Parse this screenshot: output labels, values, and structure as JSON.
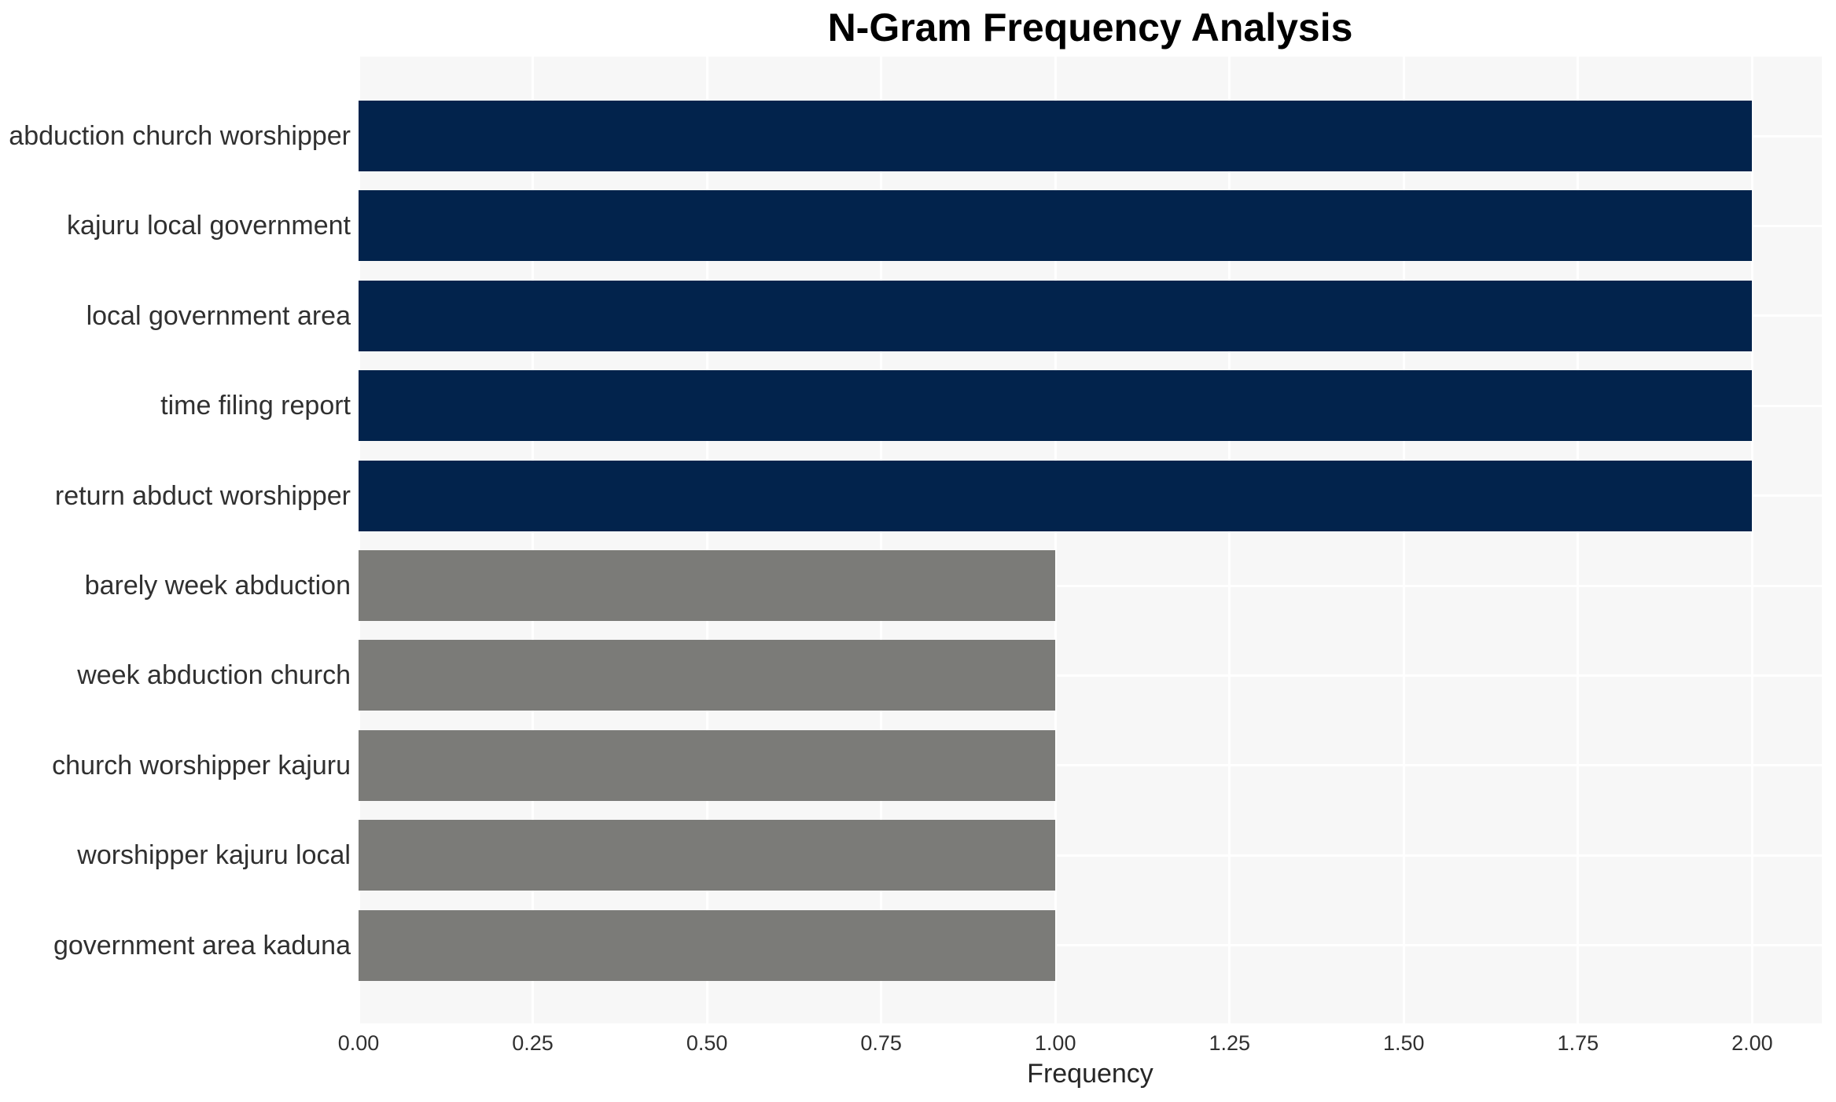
{
  "chart_data": {
    "type": "bar",
    "orientation": "horizontal",
    "title": "N-Gram Frequency Analysis",
    "xlabel": "Frequency",
    "ylabel": "",
    "categories": [
      "abduction church worshipper",
      "kajuru local government",
      "local government area",
      "time filing report",
      "return abduct worshipper",
      "barely week abduction",
      "week abduction church",
      "church worshipper kajuru",
      "worshipper kajuru local",
      "government area kaduna"
    ],
    "values": [
      2,
      2,
      2,
      2,
      2,
      1,
      1,
      1,
      1,
      1
    ],
    "bar_colors": [
      "#02234c",
      "#02234c",
      "#02234c",
      "#02234c",
      "#02234c",
      "#7b7b78",
      "#7b7b78",
      "#7b7b78",
      "#7b7b78",
      "#7b7b78"
    ],
    "xlim": [
      0,
      2.1
    ],
    "xticks": [
      0,
      0.25,
      0.5,
      0.75,
      1.0,
      1.25,
      1.5,
      1.75,
      2.0
    ],
    "xtick_labels": [
      "0.00",
      "0.25",
      "0.50",
      "0.75",
      "1.00",
      "1.25",
      "1.50",
      "1.75",
      "2.00"
    ],
    "grid": {
      "visible": true,
      "color": "#ffffff",
      "vertical_at": "x-ticks",
      "horizontal_at": "bar-centers",
      "drawn_below_bars": true
    },
    "panel_background": "#f7f7f7",
    "figure_background": "#ffffff",
    "legend": null
  },
  "style_colors": {
    "navy_bar": "#02234c",
    "gray_bar": "#7b7b78",
    "panel_bg": "#f7f7f7",
    "gridline": "#ffffff",
    "tick_text": "#303030",
    "title_text": "#000000"
  }
}
